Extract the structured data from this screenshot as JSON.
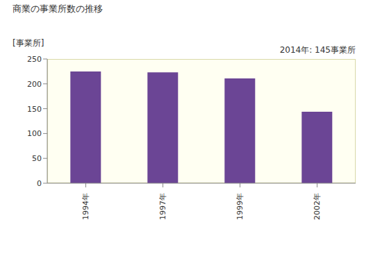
{
  "chart_data": {
    "type": "bar",
    "title": "商業の事業所数の推移",
    "y_label": "[事業所]",
    "annotation": "2014年: 145事業所",
    "categories": [
      "1994年",
      "1997年",
      "1999年",
      "2002年"
    ],
    "values": [
      225,
      223,
      211,
      144
    ],
    "color": "#6b4595",
    "ylim": [
      0,
      250
    ],
    "yticks": [
      0,
      50,
      100,
      150,
      200,
      250
    ],
    "grid": false
  }
}
